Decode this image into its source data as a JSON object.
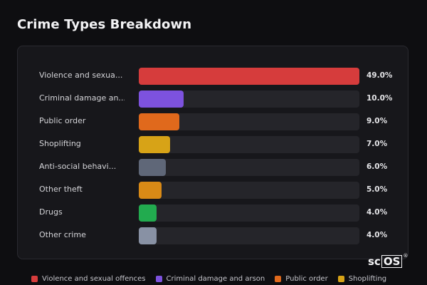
{
  "title": "Crime Types Breakdown",
  "logo_text": "scOS",
  "chart_data": {
    "type": "bar",
    "orientation": "horizontal",
    "title": "Crime Types Breakdown",
    "categories": [
      "Violence and sexua...",
      "Criminal damage an...",
      "Public order",
      "Shoplifting",
      "Anti-social behavi...",
      "Other theft",
      "Drugs",
      "Other crime"
    ],
    "values": [
      49.0,
      10.0,
      9.0,
      7.0,
      6.0,
      5.0,
      4.0,
      4.0
    ],
    "value_labels": [
      "49.0%",
      "10.0%",
      "9.0%",
      "7.0%",
      "6.0%",
      "5.0%",
      "4.0%",
      "4.0%"
    ],
    "max_value": 49.0,
    "colors": [
      "#d63c3c",
      "#7d52de",
      "#e0691c",
      "#d7a317",
      "#5f6778",
      "#d98a16",
      "#22ab4f",
      "#8891a4"
    ],
    "legend": {
      "placement": "bottom",
      "entries": [
        {
          "label": "Violence and sexual offences",
          "color": "#d63c3c"
        },
        {
          "label": "Criminal damage and arson",
          "color": "#7d52de"
        },
        {
          "label": "Public order",
          "color": "#e0691c"
        },
        {
          "label": "Shoplifting",
          "color": "#d7a317"
        }
      ]
    }
  }
}
